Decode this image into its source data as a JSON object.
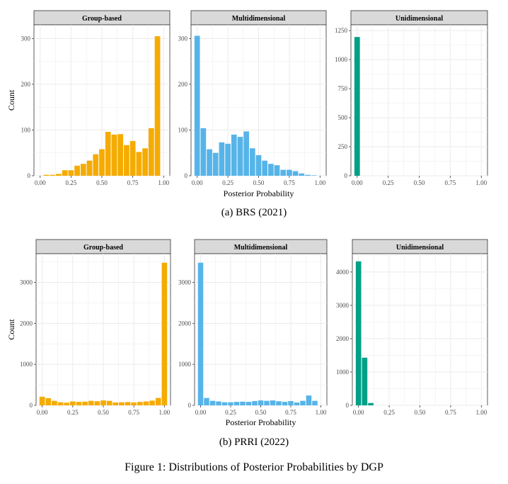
{
  "figure_caption": "Figure 1: Distributions of Posterior Probabilities by DGP",
  "colors": {
    "group_based": "#F5AB00",
    "multidimensional": "#56B4E9",
    "unidimensional": "#00A087",
    "strip_fill": "#D9D9D9",
    "grid": "#EBEBEB"
  },
  "chart_data": [
    {
      "type": "bar",
      "subcaption": "(a) BRS (2021)",
      "ylabel": "Count",
      "xlabel": "Posterior Probability",
      "x_ticks": [
        "0.00",
        "0.25",
        "0.50",
        "0.75",
        "1.00"
      ],
      "panels": [
        {
          "title": "Group-based",
          "color_key": "group_based",
          "xlim": [
            -0.05,
            1.05
          ],
          "ylim": [
            0,
            330
          ],
          "y_ticks": [
            0,
            100,
            200,
            300
          ],
          "bin_centers": [
            0.05,
            0.1,
            0.15,
            0.2,
            0.25,
            0.3,
            0.35,
            0.4,
            0.45,
            0.5,
            0.55,
            0.6,
            0.65,
            0.7,
            0.75,
            0.8,
            0.85,
            0.9,
            0.95,
            1.0
          ],
          "values": [
            2,
            2,
            4,
            12,
            12,
            22,
            26,
            33,
            47,
            58,
            96,
            90,
            91,
            67,
            76,
            52,
            60,
            104,
            305,
            0
          ]
        },
        {
          "title": "Multidimensional",
          "color_key": "multidimensional",
          "xlim": [
            -0.05,
            1.05
          ],
          "ylim": [
            0,
            330
          ],
          "y_ticks": [
            0,
            100,
            200,
            300
          ],
          "bin_centers": [
            0.0,
            0.05,
            0.1,
            0.15,
            0.2,
            0.25,
            0.3,
            0.35,
            0.4,
            0.45,
            0.5,
            0.55,
            0.6,
            0.65,
            0.7,
            0.75,
            0.8,
            0.85,
            0.9,
            0.95
          ],
          "values": [
            306,
            104,
            58,
            50,
            73,
            70,
            90,
            85,
            97,
            60,
            45,
            33,
            26,
            23,
            13,
            13,
            10,
            5,
            2,
            1
          ]
        },
        {
          "title": "Unidimensional",
          "color_key": "unidimensional",
          "xlim": [
            -0.05,
            1.05
          ],
          "ylim": [
            0,
            1300
          ],
          "y_ticks": [
            0,
            250,
            500,
            750,
            1000,
            1250
          ],
          "bin_centers": [
            0.0
          ],
          "values": [
            1195
          ]
        }
      ]
    },
    {
      "type": "bar",
      "subcaption": "(b) PRRI (2022)",
      "ylabel": "Count",
      "xlabel": "Posterior Probability",
      "x_ticks": [
        "0.00",
        "0.25",
        "0.50",
        "0.75",
        "1.00"
      ],
      "panels": [
        {
          "title": "Group-based",
          "color_key": "group_based",
          "xlim": [
            -0.05,
            1.05
          ],
          "ylim": [
            0,
            3700
          ],
          "y_ticks": [
            0,
            1000,
            2000,
            3000
          ],
          "bin_centers": [
            0.0,
            0.05,
            0.1,
            0.15,
            0.2,
            0.25,
            0.3,
            0.35,
            0.4,
            0.45,
            0.5,
            0.55,
            0.6,
            0.65,
            0.7,
            0.75,
            0.8,
            0.85,
            0.9,
            0.95,
            1.0
          ],
          "values": [
            210,
            175,
            110,
            75,
            65,
            95,
            85,
            90,
            110,
            100,
            120,
            110,
            70,
            75,
            80,
            70,
            85,
            95,
            115,
            180,
            3480
          ]
        },
        {
          "title": "Multidimensional",
          "color_key": "multidimensional",
          "xlim": [
            -0.05,
            1.05
          ],
          "ylim": [
            0,
            3700
          ],
          "y_ticks": [
            0,
            1000,
            2000,
            3000
          ],
          "bin_centers": [
            0.0,
            0.05,
            0.1,
            0.15,
            0.2,
            0.25,
            0.3,
            0.35,
            0.4,
            0.45,
            0.5,
            0.55,
            0.6,
            0.65,
            0.7,
            0.75,
            0.8,
            0.85,
            0.9,
            0.95
          ],
          "values": [
            3480,
            180,
            110,
            95,
            75,
            75,
            85,
            90,
            85,
            105,
            120,
            110,
            120,
            100,
            85,
            105,
            70,
            110,
            240,
            110
          ]
        },
        {
          "title": "Unidimensional",
          "color_key": "unidimensional",
          "xlim": [
            -0.05,
            1.05
          ],
          "ylim": [
            0,
            4550
          ],
          "y_ticks": [
            0,
            1000,
            2000,
            3000,
            4000
          ],
          "bin_centers": [
            0.0,
            0.05,
            0.1
          ],
          "values": [
            4320,
            1430,
            70
          ]
        }
      ]
    }
  ]
}
